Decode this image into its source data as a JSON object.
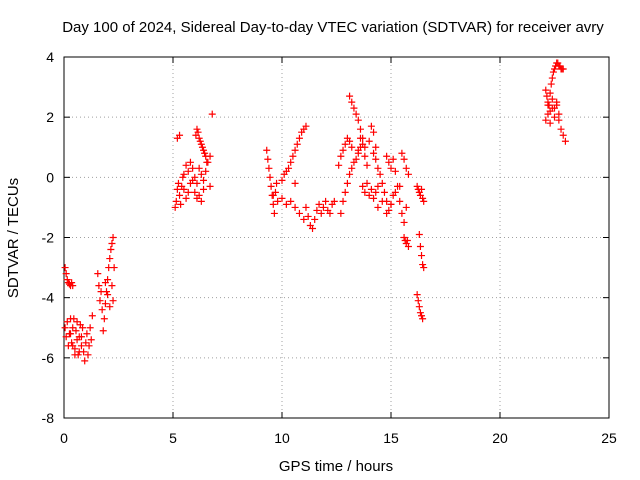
{
  "chart_data": {
    "type": "scatter",
    "title": "Day 100 of 2024, Sidereal Day-to-day VTEC variation (SDTVAR) for receiver avry",
    "xlabel": "GPS time / hours",
    "ylabel": "SDTVAR / TECUs",
    "xlim": [
      0,
      25
    ],
    "ylim": [
      -8,
      4
    ],
    "xticks": [
      "0",
      "5",
      "10",
      "15",
      "20",
      "25"
    ],
    "yticks": [
      "4",
      "2",
      "0",
      "-2",
      "-4",
      "-6",
      "-8"
    ],
    "grid": true,
    "marker": "+",
    "color": "#ff0000",
    "series": [
      {
        "name": "SDTVAR",
        "segments": [
          {
            "x": [
              0.05,
              0.1,
              0.15,
              0.2,
              0.25,
              0.3,
              0.35,
              0.4
            ],
            "y": [
              -3.0,
              -3.2,
              -3.4,
              -3.5,
              -3.55,
              -3.6,
              -3.5,
              -3.6
            ]
          },
          {
            "x": [
              0.05,
              0.1,
              0.15,
              0.2,
              0.25,
              0.3,
              0.35,
              0.4,
              0.45,
              0.5,
              0.55,
              0.6,
              0.65,
              0.7,
              0.75,
              0.8,
              0.85,
              0.9,
              0.95,
              1.0,
              1.05,
              1.1,
              1.15,
              1.2,
              1.25,
              1.3
            ],
            "y": [
              -5.0,
              -5.3,
              -4.8,
              -5.6,
              -5.2,
              -4.7,
              -5.5,
              -5.0,
              -4.7,
              -5.7,
              -5.1,
              -4.8,
              -5.9,
              -5.3,
              -4.9,
              -5.6,
              -5.0,
              -5.8,
              -6.1,
              -5.5,
              -5.2,
              -5.9,
              -5.6,
              -5.0,
              -5.4,
              -4.6
            ]
          },
          {
            "x": [
              0.3,
              0.4,
              0.5,
              0.6,
              0.7,
              0.8
            ],
            "y": [
              -5.2,
              -5.6,
              -5.9,
              -5.4,
              -5.8,
              -5.3
            ]
          },
          {
            "x": [
              1.55,
              1.6,
              1.65,
              1.7,
              1.75
            ],
            "y": [
              -3.2,
              -3.6,
              -4.1,
              -3.8,
              -4.4
            ]
          },
          {
            "x": [
              1.8,
              1.85,
              1.9,
              1.95,
              2.0,
              2.05,
              2.1,
              2.15,
              2.2,
              2.25,
              2.3
            ],
            "y": [
              -5.1,
              -4.7,
              -4.2,
              -3.8,
              -3.4,
              -3.0,
              -2.7,
              -2.4,
              -2.2,
              -2.0,
              -3.0
            ]
          },
          {
            "x": [
              1.9,
              2.0,
              2.1,
              2.2,
              2.25
            ],
            "y": [
              -3.5,
              -3.9,
              -4.3,
              -3.6,
              -4.1
            ]
          },
          {
            "x": [
              5.1,
              5.15,
              5.2,
              5.25,
              5.3,
              5.35,
              5.4,
              5.45,
              5.5,
              5.6,
              5.7,
              5.8,
              5.9
            ],
            "y": [
              -1.0,
              -0.8,
              -0.4,
              -0.2,
              -0.6,
              -0.9,
              -0.3,
              0.0,
              -0.4,
              -0.7,
              -0.5,
              -0.2,
              -0.1
            ]
          },
          {
            "x": [
              5.2,
              5.3
            ],
            "y": [
              1.3,
              1.4
            ]
          },
          {
            "x": [
              5.5,
              5.6,
              5.7,
              5.8,
              5.9,
              6.0,
              6.1,
              6.2,
              6.3,
              6.4,
              6.5,
              6.6,
              6.7
            ],
            "y": [
              0.1,
              0.4,
              0.2,
              0.5,
              0.3,
              0.0,
              -0.2,
              0.3,
              0.1,
              -0.1,
              0.2,
              0.5,
              0.7
            ]
          },
          {
            "x": [
              6.0,
              6.1,
              6.2,
              6.3,
              6.4
            ],
            "y": [
              -0.5,
              -0.7,
              -0.6,
              -0.8,
              -0.4
            ]
          },
          {
            "x": [
              6.05,
              6.1,
              6.15,
              6.2,
              6.25,
              6.3,
              6.35,
              6.4,
              6.45,
              6.5,
              6.55
            ],
            "y": [
              1.4,
              1.6,
              1.5,
              1.3,
              1.2,
              1.1,
              1.0,
              0.9,
              0.8,
              0.7,
              0.5
            ]
          },
          {
            "x": [
              6.7
            ],
            "y": [
              -0.3
            ]
          },
          {
            "x": [
              6.8
            ],
            "y": [
              2.1
            ]
          },
          {
            "x": [
              9.3,
              9.35,
              9.4,
              9.45,
              9.5,
              9.55,
              9.6,
              9.65,
              9.7,
              9.75
            ],
            "y": [
              0.9,
              0.6,
              0.3,
              0.0,
              -0.3,
              -0.6,
              -0.9,
              -1.2,
              -0.5,
              -0.2
            ]
          },
          {
            "x": [
              9.6,
              9.8,
              10.0,
              10.2,
              10.4,
              10.6,
              10.8,
              11.0
            ],
            "y": [
              -0.6,
              -0.8,
              -0.7,
              -0.9,
              -0.8,
              -1.0,
              -1.2,
              -1.4
            ]
          },
          {
            "x": [
              10.0,
              10.1,
              10.2,
              10.3,
              10.4,
              10.5,
              10.6,
              10.7,
              10.8,
              10.9,
              11.0,
              11.1
            ],
            "y": [
              -0.1,
              0.1,
              0.2,
              0.3,
              0.5,
              0.7,
              0.9,
              1.1,
              1.3,
              1.5,
              1.6,
              1.7
            ]
          },
          {
            "x": [
              10.6
            ],
            "y": [
              -0.2
            ]
          },
          {
            "x": [
              11.1,
              11.2,
              11.3,
              11.4,
              11.5,
              11.6,
              11.7,
              11.8,
              11.9,
              12.0,
              12.1,
              12.2,
              12.3,
              12.4
            ],
            "y": [
              -1.0,
              -1.3,
              -1.6,
              -1.7,
              -1.4,
              -1.1,
              -0.9,
              -1.2,
              -1.0,
              -0.8,
              -1.1,
              -1.2,
              -0.9,
              -0.8
            ]
          },
          {
            "x": [
              12.7,
              12.8,
              12.9,
              13.0,
              13.1,
              13.2,
              13.3,
              13.4,
              13.5,
              13.6
            ],
            "y": [
              -1.2,
              -0.8,
              -0.5,
              -0.2,
              0.1,
              0.3,
              0.5,
              0.6,
              0.8,
              1.0
            ]
          },
          {
            "x": [
              12.6,
              12.7,
              12.8,
              12.9,
              13.0,
              13.1,
              13.2
            ],
            "y": [
              0.4,
              0.7,
              0.9,
              1.1,
              1.3,
              1.2,
              1.0
            ]
          },
          {
            "x": [
              13.1,
              13.2,
              13.3,
              13.4,
              13.5,
              13.6,
              13.7,
              13.8
            ],
            "y": [
              2.7,
              2.5,
              2.3,
              2.1,
              1.9,
              1.6,
              1.3,
              1.0
            ]
          },
          {
            "x": [
              13.5,
              13.6,
              13.7,
              13.8,
              13.9,
              14.0,
              14.1,
              14.2,
              14.3
            ],
            "y": [
              0.9,
              1.3,
              1.1,
              0.7,
              0.4,
              1.2,
              1.7,
              1.5,
              1.0
            ]
          },
          {
            "x": [
              13.7,
              13.8,
              13.9,
              14.0,
              14.1,
              14.2,
              14.3,
              14.4
            ],
            "y": [
              -0.3,
              -0.5,
              -0.2,
              -0.6,
              -0.4,
              -0.7,
              -0.5,
              -0.3
            ]
          },
          {
            "x": [
              14.2,
              14.3,
              14.4,
              14.5,
              14.6,
              14.7,
              14.8,
              14.9,
              15.0,
              15.1
            ],
            "y": [
              0.8,
              0.6,
              0.3,
              0.1,
              -0.2,
              -0.5,
              -0.8,
              -1.1,
              -0.9,
              -0.6
            ]
          },
          {
            "x": [
              14.4,
              14.6,
              14.8,
              15.0,
              15.2,
              15.4
            ],
            "y": [
              -1.0,
              -0.8,
              -1.2,
              -0.9,
              -0.5,
              -0.3
            ]
          },
          {
            "x": [
              14.8,
              14.9,
              15.0,
              15.1,
              15.2,
              15.3,
              15.4,
              15.5,
              15.6,
              15.7
            ],
            "y": [
              0.7,
              0.5,
              0.3,
              0.6,
              0.2,
              -0.3,
              -0.8,
              -1.2,
              -1.5,
              -1.0
            ]
          },
          {
            "x": [
              15.5,
              15.6,
              15.7,
              15.8
            ],
            "y": [
              0.8,
              0.6,
              0.3,
              0.1
            ]
          },
          {
            "x": [
              15.6,
              15.65,
              15.7,
              15.75,
              15.8
            ],
            "y": [
              -2.0,
              -2.1,
              -2.2,
              -2.1,
              -2.3
            ]
          },
          {
            "x": [
              16.2,
              16.25,
              16.3,
              16.35,
              16.4,
              16.45,
              16.5
            ],
            "y": [
              -0.3,
              -0.4,
              -0.5,
              -0.6,
              -0.4,
              -0.7,
              -0.8
            ]
          },
          {
            "x": [
              16.3,
              16.35,
              16.4,
              16.45,
              16.5
            ],
            "y": [
              -1.9,
              -2.3,
              -2.6,
              -2.9,
              -3.0
            ]
          },
          {
            "x": [
              16.2,
              16.25,
              16.3,
              16.35,
              16.4,
              16.45
            ],
            "y": [
              -3.9,
              -4.1,
              -4.3,
              -4.5,
              -4.6,
              -4.7
            ]
          },
          {
            "x": [
              22.1,
              22.15,
              22.2,
              22.25,
              22.3,
              22.35,
              22.4,
              22.45,
              22.5,
              22.55,
              22.6,
              22.65,
              22.7,
              22.75,
              22.8,
              22.85,
              22.9
            ],
            "y": [
              2.9,
              2.7,
              2.5,
              2.4,
              2.8,
              3.1,
              3.3,
              3.5,
              3.6,
              3.7,
              3.8,
              3.8,
              3.7,
              3.7,
              3.6,
              3.6,
              3.6
            ]
          },
          {
            "x": [
              22.1,
              22.2,
              22.3,
              22.4,
              22.5,
              22.6,
              22.7,
              22.8,
              22.9,
              23.0
            ],
            "y": [
              1.9,
              2.1,
              1.8,
              2.3,
              2.0,
              2.4,
              1.9,
              1.6,
              1.4,
              1.2
            ]
          },
          {
            "x": [
              22.2,
              22.3,
              22.4,
              22.5,
              22.6,
              22.7
            ],
            "y": [
              2.4,
              2.2,
              2.6,
              2.3,
              2.5,
              2.1
            ]
          }
        ]
      }
    ]
  }
}
